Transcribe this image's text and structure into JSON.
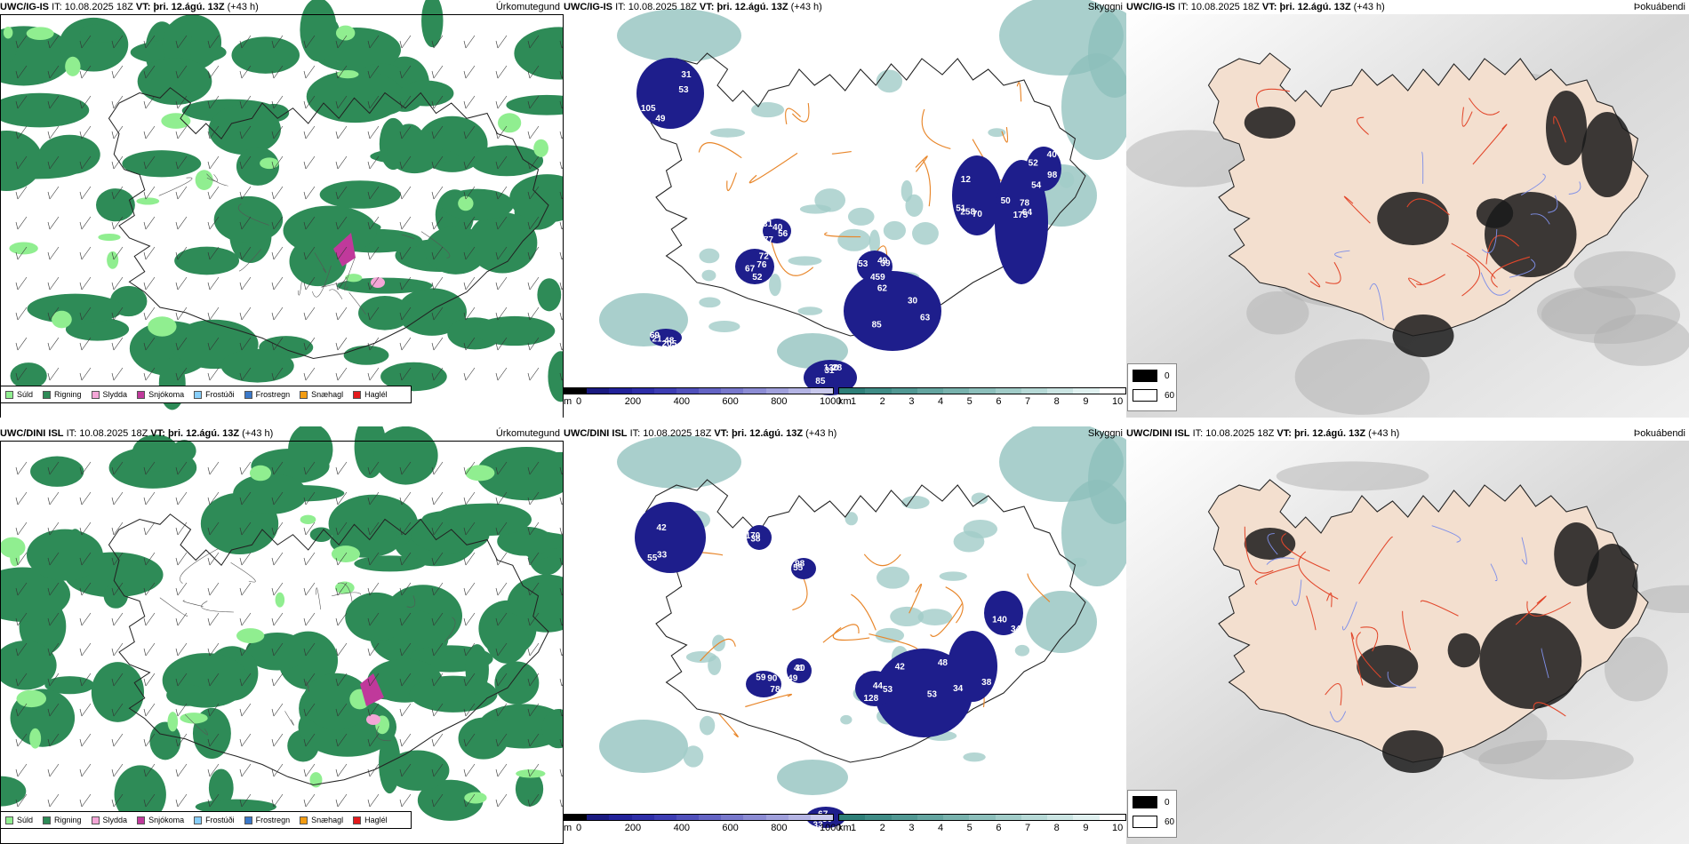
{
  "rows": [
    {
      "model": "UWC/IG-IS",
      "it_label": "IT:",
      "it_value": "10.08.2025 18Z",
      "vt_label": "VT:",
      "vt_value": "þri. 12.ágú. 13Z",
      "lead": "(+43 h)",
      "panel_titles": [
        "Úrkomutegund",
        "Skyggni",
        "Þokuábendi"
      ],
      "cloud_numbers": [
        "49",
        "52",
        "40",
        "28",
        "62",
        "53",
        "70",
        "64",
        "98",
        "21",
        "31",
        "67",
        "56",
        "85",
        "30",
        "39",
        "12",
        "78",
        "40",
        "69",
        "105",
        "72",
        "31",
        "31",
        "85",
        "459",
        "258",
        "175",
        "52",
        "205",
        "53",
        "76",
        "77",
        "130",
        "63",
        "49",
        "51",
        "50",
        "54",
        "48"
      ]
    },
    {
      "model": "UWC/DINI ISL",
      "it_label": "IT:",
      "it_value": "10.08.2025 18Z",
      "vt_label": "VT:",
      "vt_value": "þri. 12.ágú. 13Z",
      "lead": "(+43 h)",
      "panel_titles": [
        "Úrkomutegund",
        "Skyggni",
        "Þokuábendi"
      ],
      "cloud_numbers": [
        "33",
        "59",
        "41",
        "33",
        "42",
        "44",
        "34",
        "140",
        "38",
        "98",
        "42",
        "90",
        "49",
        "67",
        "53",
        "53",
        "38",
        "34",
        "170",
        "55",
        "55",
        "78",
        "30",
        "30",
        "48",
        "128"
      ]
    }
  ],
  "precip_legend": [
    {
      "label": "Súld",
      "color": "#90EE90"
    },
    {
      "label": "Rigning",
      "color": "#2E8B57"
    },
    {
      "label": "Slydda",
      "color": "#F4A6D7"
    },
    {
      "label": "Snjókoma",
      "color": "#C0399B"
    },
    {
      "label": "Frostúði",
      "color": "#87CEFA"
    },
    {
      "label": "Frostregn",
      "color": "#3A78C9"
    },
    {
      "label": "Snæhagl",
      "color": "#F39C12"
    },
    {
      "label": "Haglél",
      "color": "#E31A1C"
    }
  ],
  "cloud_base_scale": {
    "unit": "m",
    "ticks": [
      "0",
      "200",
      "400",
      "600",
      "800",
      "1000"
    ],
    "colors": [
      "#000000",
      "#1a1a80",
      "#22229a",
      "#2e2ea8",
      "#3d3db3",
      "#5050bb",
      "#6464c4",
      "#7878cc",
      "#8c8cd4",
      "#a0a0dc",
      "#b4b4e4",
      "#c8c8ec"
    ]
  },
  "visibility_scale": {
    "unit": "km",
    "ticks": [
      "1",
      "2",
      "3",
      "4",
      "5",
      "6",
      "7",
      "8",
      "9",
      "10"
    ],
    "colors": [
      "#2e7f78",
      "#3f8c86",
      "#519893",
      "#64a5a0",
      "#78b2ad",
      "#8cbfbb",
      "#a1ccc8",
      "#b6d9d6",
      "#cbe5e3",
      "#e0f1f0",
      "#ffffff"
    ]
  },
  "fog_legend": [
    {
      "label": "0",
      "color": "#000000"
    },
    {
      "label": "60",
      "color": "#ffffff"
    }
  ]
}
